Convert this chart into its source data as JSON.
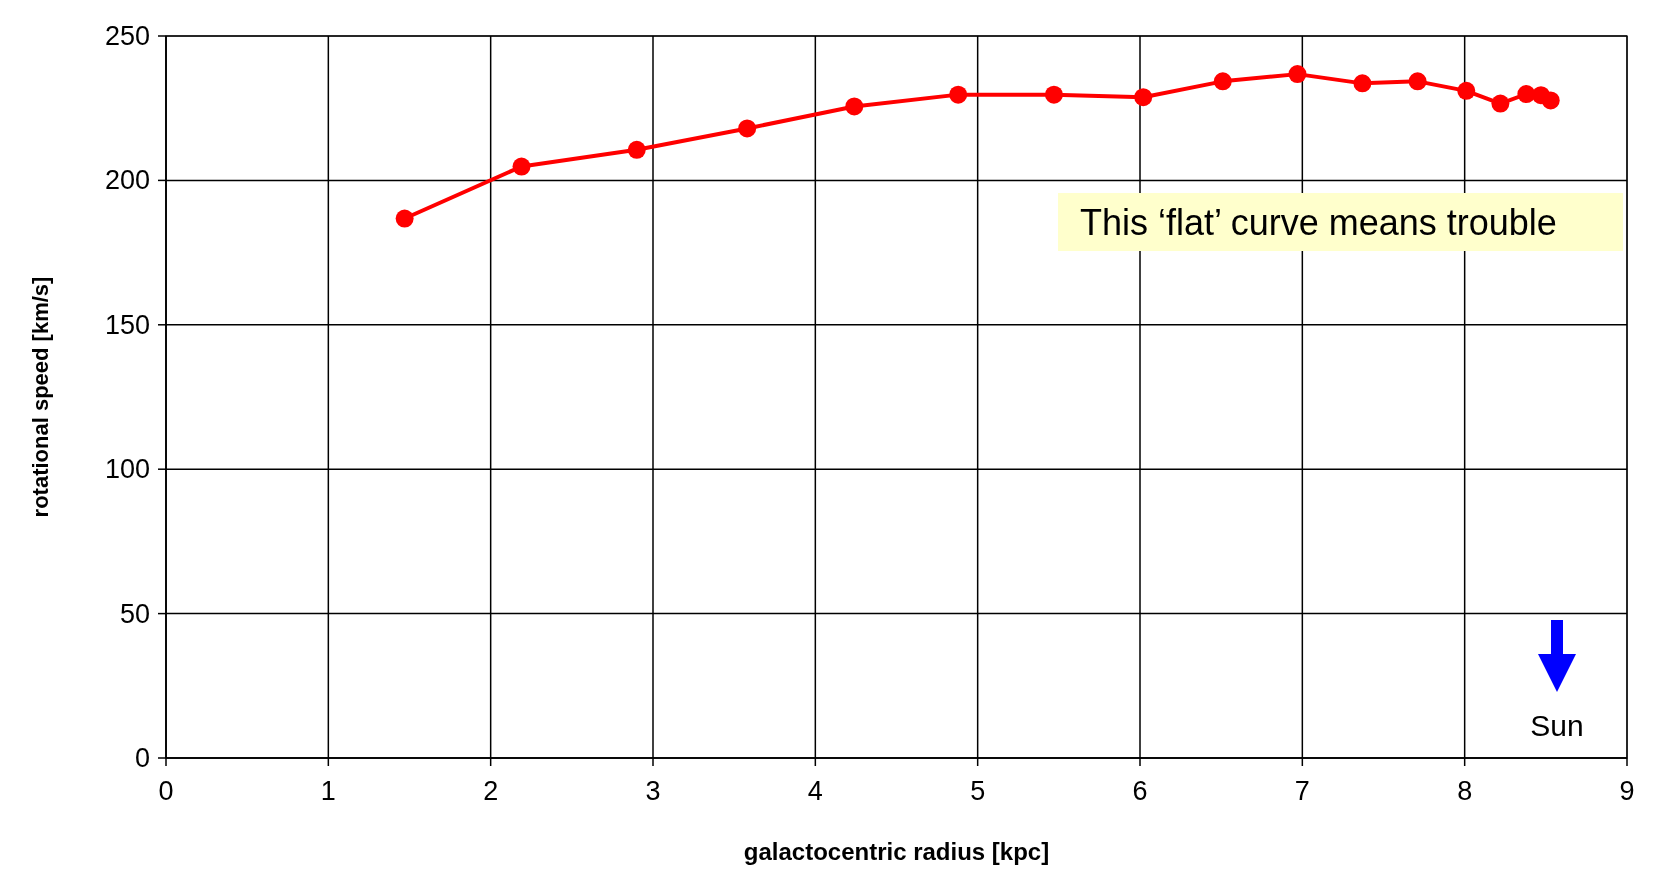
{
  "chart_data": {
    "type": "line",
    "xlabel": "galactocentric radius [kpc]",
    "ylabel": "rotational speed [km/s]",
    "xlim": [
      0,
      9
    ],
    "xticks": [
      0,
      1,
      2,
      3,
      4,
      5,
      6,
      7,
      8,
      9
    ],
    "ylim": [
      0,
      250
    ],
    "yticks": [
      0,
      50,
      100,
      150,
      200,
      250
    ],
    "grid": true,
    "marker": "circle",
    "line_style": "solid",
    "series": [
      {
        "color": "#ff0000",
        "x": [
          1.47,
          2.19,
          2.9,
          3.58,
          4.24,
          4.88,
          5.47,
          6.02,
          6.51,
          6.97,
          7.37,
          7.71,
          8.01,
          8.22,
          8.38,
          8.47,
          8.53
        ],
        "values": [
          186.8,
          204.8,
          210.6,
          218,
          225.6,
          229.7,
          229.7,
          228.8,
          234.3,
          236.8,
          233.6,
          234.3,
          231,
          226.6,
          229.9,
          229.5,
          227.7
        ]
      }
    ],
    "annotations": [
      "This ‘flat’ curve means trouble",
      "Sun"
    ]
  }
}
